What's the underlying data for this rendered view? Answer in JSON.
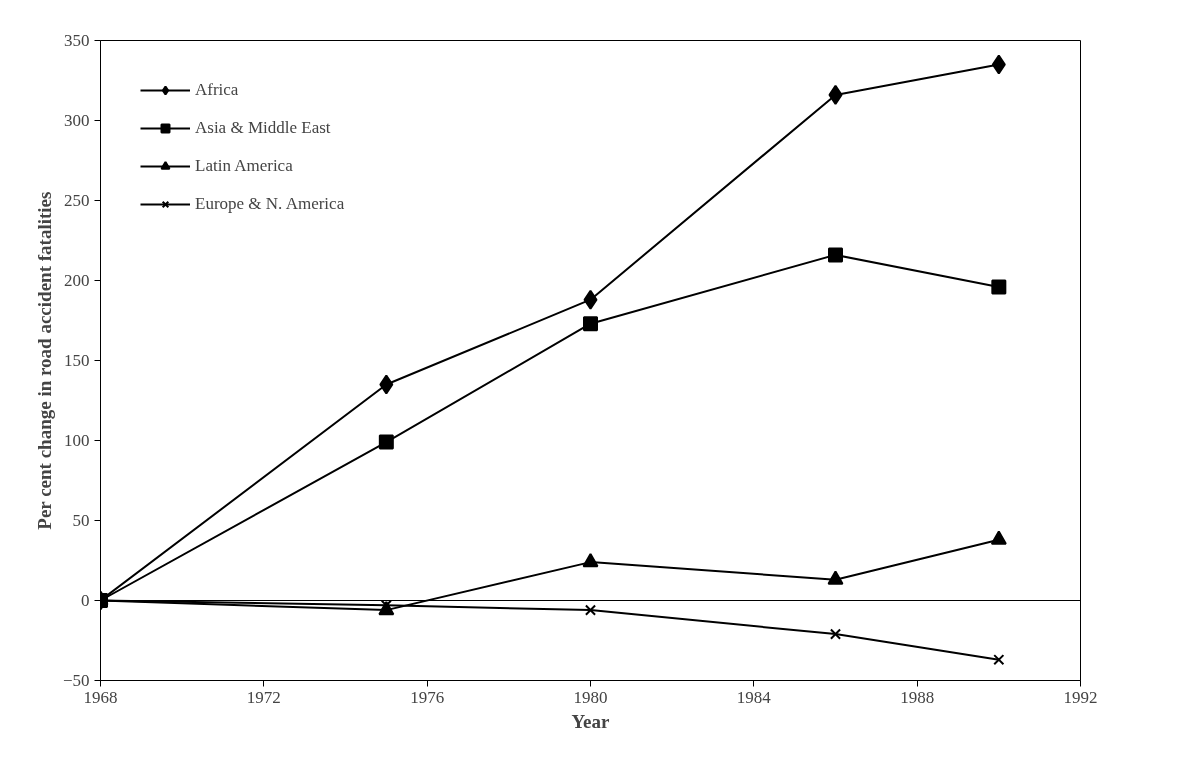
{
  "chart_data": {
    "type": "line",
    "xlabel": "Year",
    "ylabel": "Per cent change in road accident fatalities",
    "x": [
      1968,
      1975,
      1980,
      1986,
      1990
    ],
    "xlim": [
      1968,
      1992
    ],
    "xticks": [
      1968,
      1972,
      1976,
      1980,
      1984,
      1988,
      1992
    ],
    "ylim": [
      -50,
      350
    ],
    "yticks": [
      -50,
      0,
      50,
      100,
      150,
      200,
      250,
      300,
      350
    ],
    "grid": false,
    "legend": "top left",
    "ref_lines": [
      {
        "axis": "y",
        "value": 0,
        "label": null
      }
    ],
    "series": [
      {
        "name": "Africa",
        "color": "#000000",
        "marker": "diamond",
        "values": [
          0,
          135,
          188,
          316,
          335
        ]
      },
      {
        "name": "Asia & Middle East",
        "color": "#000000",
        "marker": "square",
        "values": [
          0,
          99,
          173,
          216,
          196
        ]
      },
      {
        "name": "Latin America",
        "color": "#000000",
        "marker": "triangle",
        "values": [
          0,
          -6,
          24,
          13,
          38
        ]
      },
      {
        "name": "Europe & N. America",
        "color": "#000000",
        "marker": "cross",
        "values": [
          0,
          -3,
          -6,
          -21,
          -37
        ]
      }
    ]
  }
}
